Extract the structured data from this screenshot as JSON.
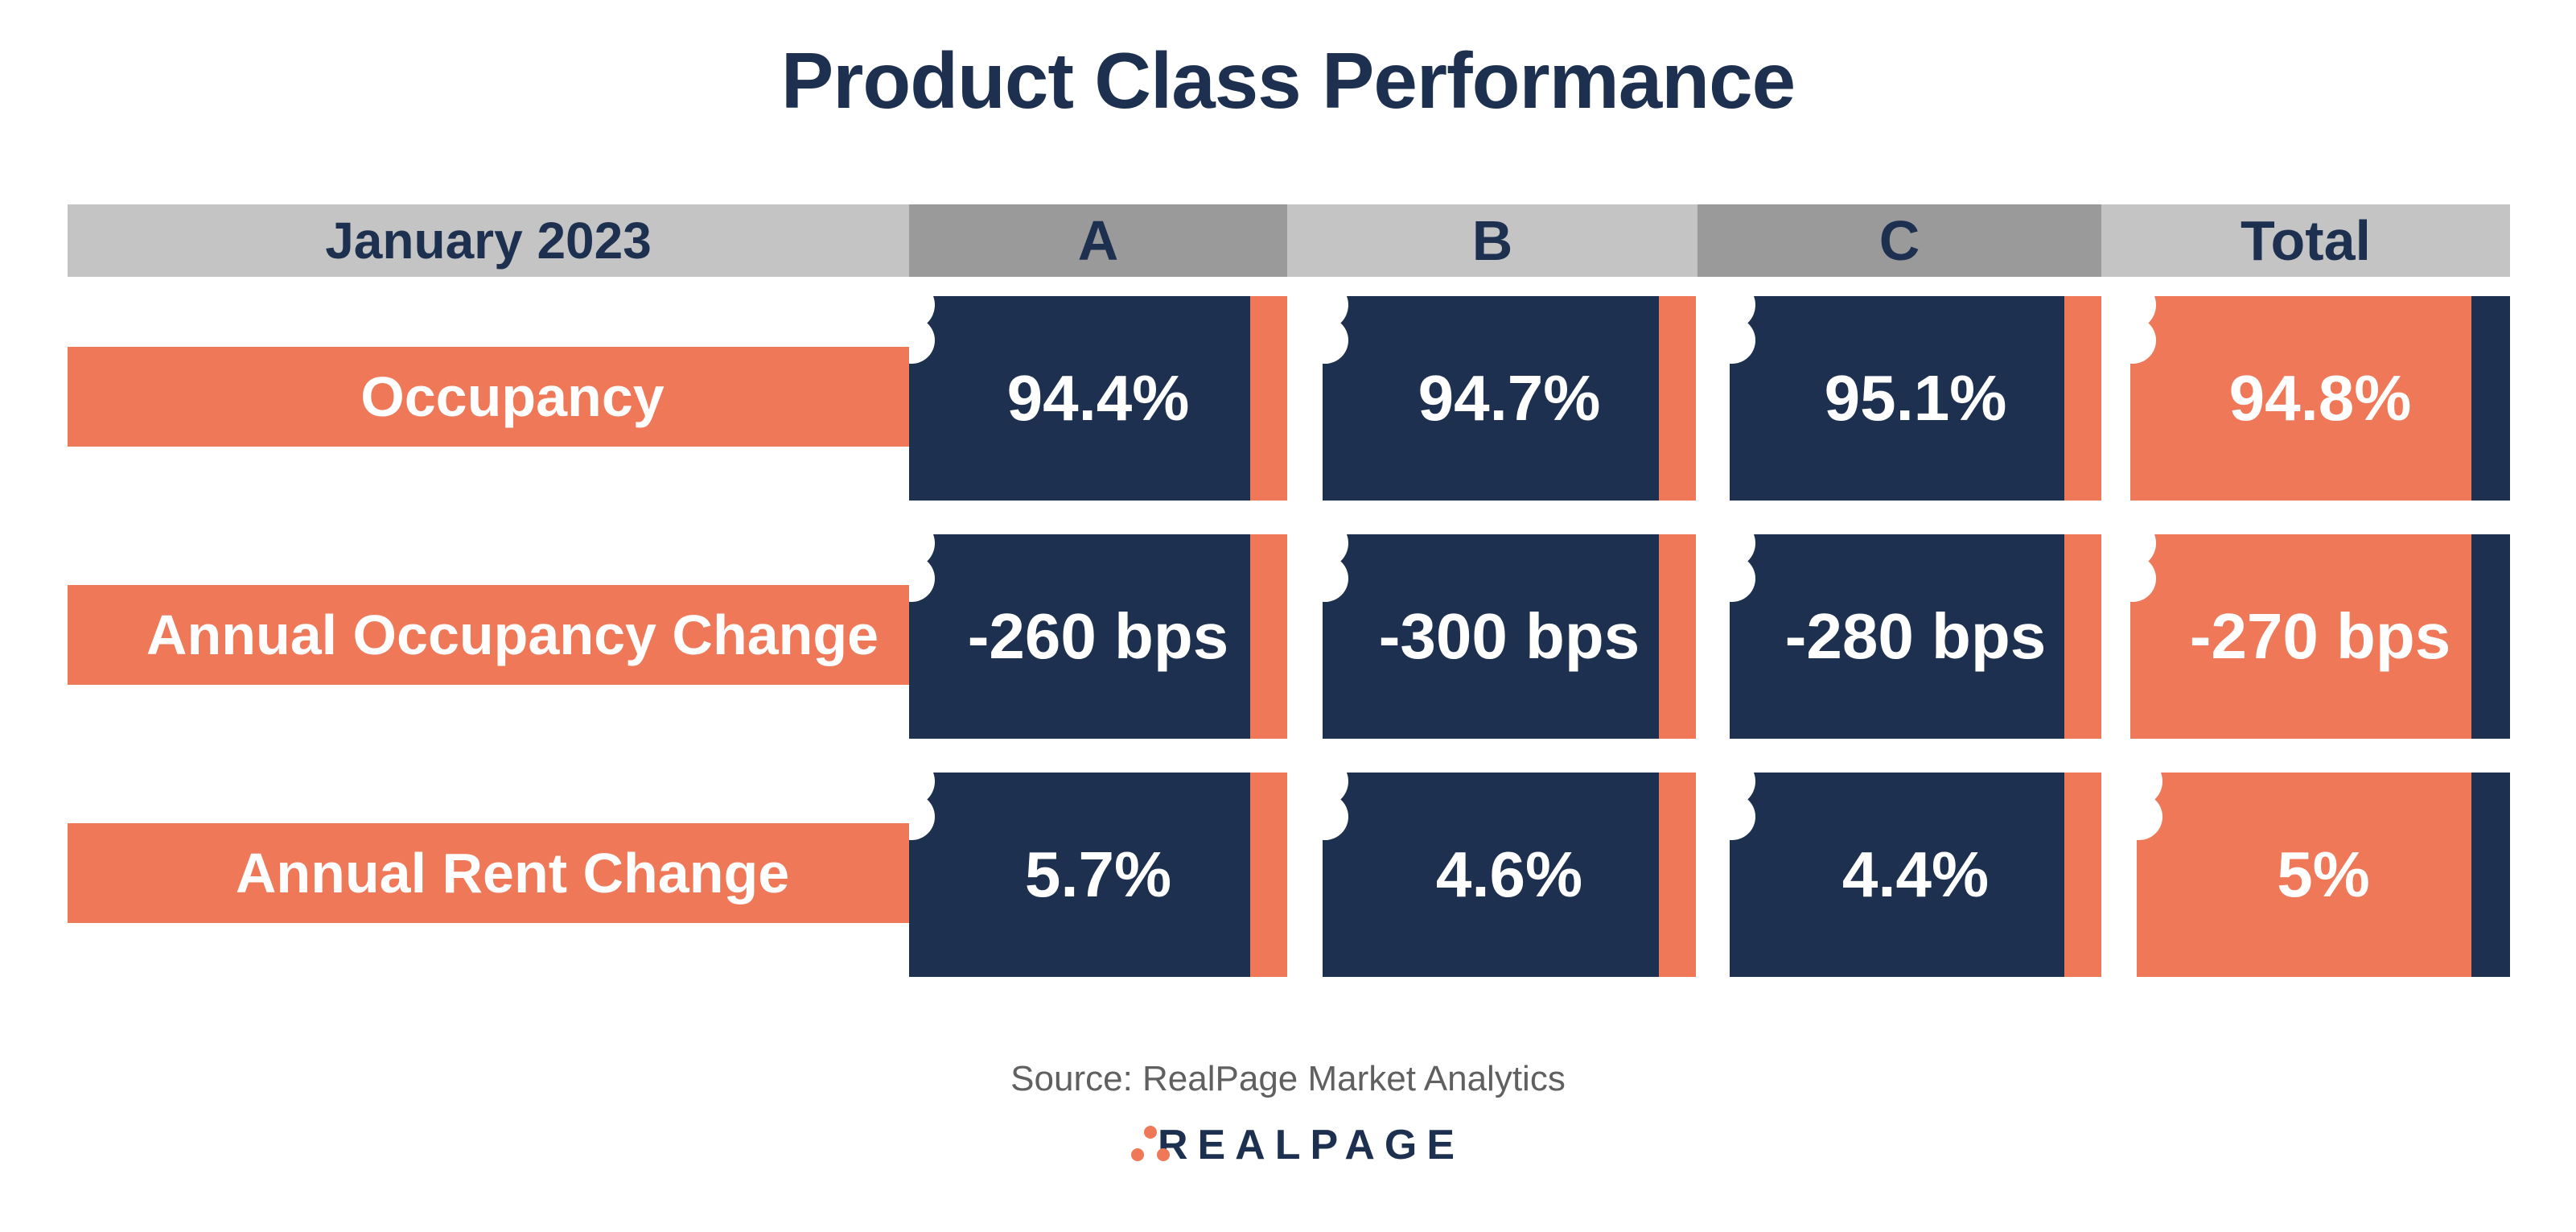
{
  "title": "Product Class Performance",
  "chart_data": {
    "type": "table",
    "title": "Product Class Performance",
    "period": "January 2023",
    "columns": [
      "A",
      "B",
      "C",
      "Total"
    ],
    "rows": [
      {
        "label": "Occupancy",
        "values": [
          "94.4%",
          "94.7%",
          "95.1%",
          "94.8%"
        ]
      },
      {
        "label": "Annual Occupancy Change",
        "values": [
          "-260 bps",
          "-300 bps",
          "-280 bps",
          "-270 bps"
        ]
      },
      {
        "label": "Annual Rent Change",
        "values": [
          "5.7%",
          "4.6%",
          "4.4%",
          "5%"
        ]
      }
    ]
  },
  "source": "Source: RealPage Market Analytics",
  "logo_text": "REALPAGE",
  "colors": {
    "navy": "#1e3050",
    "orange": "#ee7857",
    "header_gray_light": "#c4c4c4",
    "header_gray_dark": "#9a9a9a"
  }
}
